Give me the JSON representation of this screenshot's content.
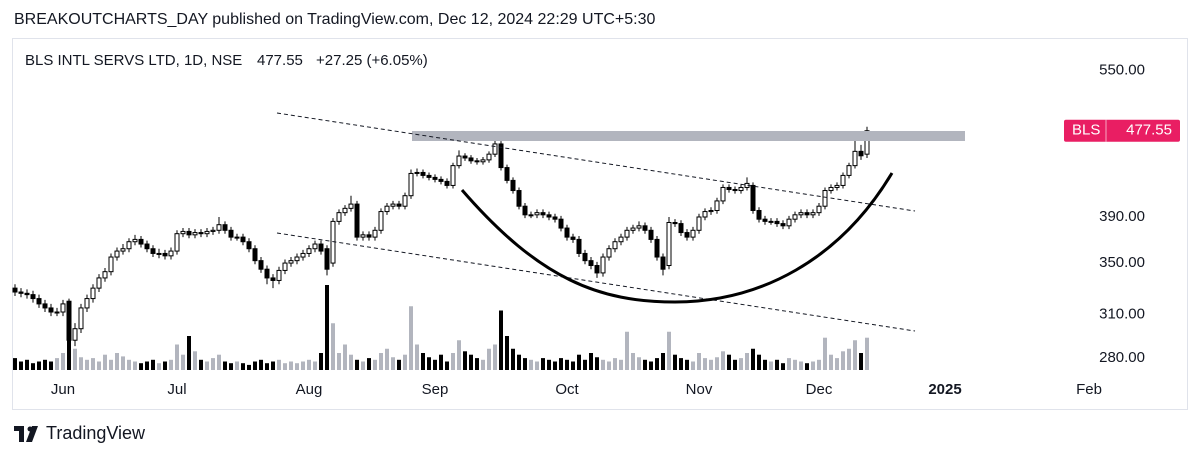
{
  "header": {
    "publisher_line": "BREAKOUTCHARTS_DAY published on TradingView.com, Dec 12, 2024 22:29 UTC+5:30"
  },
  "chart_data": {
    "type": "candlestick",
    "symbol": "BLS INTL SERVS LTD, 1D, NSE",
    "change": "+27.25 (+6.05%)",
    "badge": "BLS",
    "open": [
      330,
      327,
      326,
      325,
      322,
      318,
      315,
      312,
      312,
      320,
      292,
      300,
      315,
      322,
      330,
      338,
      343,
      355,
      360,
      362,
      368,
      370,
      366,
      362,
      358,
      358,
      356,
      360,
      375,
      377,
      374,
      376,
      375,
      377,
      378,
      383,
      378,
      372,
      372,
      368,
      362,
      352,
      345,
      338,
      336,
      344,
      350,
      352,
      355,
      358,
      362,
      366,
      362,
      350,
      386,
      394,
      398,
      402,
      372,
      374,
      372,
      378,
      395,
      400,
      402,
      400,
      410,
      432,
      433,
      430,
      428,
      426,
      424,
      420,
      440,
      450,
      448,
      445,
      444,
      446,
      452,
      463,
      438,
      425,
      415,
      400,
      392,
      392,
      394,
      392,
      390,
      388,
      380,
      372,
      370,
      358,
      352,
      348,
      342,
      355,
      362,
      368,
      372,
      378,
      380,
      382,
      378,
      370,
      355,
      348,
      385,
      384,
      376,
      372,
      378,
      390,
      395,
      396,
      405,
      418,
      416,
      415,
      418,
      420,
      396,
      388,
      386,
      386,
      384,
      382,
      388,
      392,
      394,
      392,
      394,
      400,
      415,
      418,
      420,
      430,
      440,
      455,
      452
    ],
    "high": [
      333,
      330,
      329,
      328,
      325,
      321,
      318,
      315,
      321,
      322,
      304,
      318,
      325,
      333,
      341,
      346,
      358,
      363,
      366,
      371,
      374,
      373,
      369,
      365,
      362,
      361,
      363,
      378,
      380,
      380,
      379,
      379,
      380,
      381,
      390,
      386,
      381,
      375,
      375,
      371,
      365,
      355,
      348,
      341,
      347,
      353,
      355,
      358,
      361,
      365,
      369,
      369,
      365,
      389,
      397,
      401,
      410,
      405,
      377,
      377,
      381,
      398,
      403,
      405,
      405,
      413,
      436,
      437,
      436,
      433,
      431,
      429,
      427,
      443,
      456,
      453,
      451,
      448,
      449,
      455,
      472,
      466,
      441,
      428,
      418,
      403,
      395,
      397,
      397,
      395,
      393,
      391,
      383,
      375,
      373,
      361,
      355,
      351,
      358,
      365,
      371,
      375,
      381,
      383,
      386,
      385,
      381,
      373,
      358,
      390,
      388,
      387,
      379,
      381,
      393,
      398,
      399,
      408,
      421,
      421,
      419,
      421,
      428,
      423,
      399,
      391,
      389,
      389,
      387,
      391,
      395,
      397,
      397,
      397,
      403,
      418,
      421,
      423,
      433,
      443,
      470,
      462,
      482
    ],
    "low": [
      324,
      323,
      322,
      319,
      315,
      312,
      309,
      309,
      309,
      284,
      288,
      297,
      312,
      319,
      327,
      335,
      340,
      352,
      357,
      359,
      365,
      363,
      359,
      355,
      354,
      353,
      353,
      357,
      372,
      371,
      371,
      372,
      372,
      374,
      375,
      375,
      369,
      369,
      365,
      359,
      349,
      342,
      333,
      330,
      333,
      341,
      347,
      349,
      352,
      355,
      359,
      357,
      340,
      347,
      383,
      391,
      395,
      369,
      369,
      369,
      369,
      375,
      392,
      397,
      397,
      397,
      407,
      429,
      427,
      425,
      423,
      421,
      417,
      417,
      437,
      445,
      442,
      441,
      441,
      443,
      449,
      435,
      422,
      412,
      397,
      389,
      389,
      389,
      389,
      387,
      385,
      377,
      369,
      367,
      355,
      349,
      345,
      338,
      339,
      352,
      359,
      365,
      369,
      375,
      377,
      375,
      367,
      352,
      340,
      345,
      381,
      373,
      369,
      369,
      375,
      387,
      392,
      393,
      402,
      413,
      412,
      412,
      415,
      393,
      385,
      383,
      383,
      381,
      379,
      379,
      385,
      389,
      389,
      389,
      391,
      397,
      412,
      415,
      417,
      427,
      437,
      446,
      448
    ],
    "close": [
      327,
      326,
      325,
      322,
      318,
      315,
      312,
      312,
      318,
      292,
      300,
      315,
      322,
      330,
      338,
      343,
      355,
      360,
      362,
      368,
      370,
      366,
      362,
      358,
      358,
      356,
      360,
      375,
      377,
      374,
      376,
      375,
      377,
      378,
      383,
      378,
      372,
      372,
      368,
      362,
      352,
      345,
      338,
      336,
      344,
      350,
      352,
      355,
      358,
      362,
      366,
      360,
      345,
      386,
      394,
      398,
      402,
      372,
      374,
      372,
      378,
      395,
      400,
      402,
      400,
      410,
      432,
      433,
      430,
      428,
      426,
      424,
      420,
      440,
      450,
      448,
      445,
      444,
      446,
      452,
      463,
      438,
      425,
      415,
      400,
      392,
      392,
      394,
      392,
      390,
      388,
      380,
      372,
      370,
      358,
      352,
      348,
      342,
      355,
      362,
      368,
      372,
      378,
      380,
      382,
      378,
      370,
      355,
      345,
      385,
      384,
      376,
      372,
      378,
      390,
      395,
      396,
      405,
      418,
      416,
      415,
      418,
      422,
      396,
      388,
      386,
      386,
      384,
      382,
      388,
      392,
      394,
      392,
      394,
      400,
      415,
      418,
      420,
      430,
      440,
      455,
      450.3,
      477.55
    ],
    "volume": [
      14,
      10,
      12,
      8,
      10,
      12,
      10,
      14,
      20,
      60,
      25,
      15,
      12,
      14,
      10,
      18,
      12,
      20,
      16,
      12,
      10,
      8,
      10,
      12,
      8,
      10,
      12,
      30,
      18,
      40,
      22,
      12,
      10,
      14,
      18,
      10,
      8,
      10,
      8,
      6,
      10,
      12,
      8,
      10,
      12,
      8,
      10,
      8,
      10,
      12,
      10,
      20,
      100,
      55,
      20,
      30,
      18,
      12,
      10,
      14,
      12,
      20,
      25,
      15,
      12,
      18,
      75,
      30,
      20,
      15,
      12,
      18,
      10,
      20,
      35,
      22,
      18,
      14,
      12,
      25,
      30,
      70,
      40,
      25,
      18,
      14,
      12,
      10,
      14,
      12,
      10,
      14,
      12,
      10,
      18,
      12,
      20,
      15,
      12,
      10,
      14,
      12,
      45,
      20,
      15,
      12,
      10,
      14,
      20,
      45,
      18,
      14,
      12,
      10,
      20,
      14,
      12,
      15,
      22,
      18,
      12,
      14,
      20,
      25,
      18,
      12,
      10,
      12,
      8,
      14,
      12,
      10,
      8,
      10,
      12,
      38,
      18,
      14,
      22,
      25,
      35,
      20,
      38
    ],
    "up_color": "#ffffff",
    "down_color": "#000000",
    "wick_color": "#000000",
    "volume_up_color": "#b2b5be",
    "volume_down_color": "#000000",
    "badge_color": "#e91e63",
    "log_scale": true,
    "ylim": [
      271,
      591
    ],
    "yticks": [
      {
        "value": 280,
        "label": "280.00"
      },
      {
        "value": 310,
        "label": "310.00"
      },
      {
        "value": 350,
        "label": "350.00"
      },
      {
        "value": 390,
        "label": "390.00"
      },
      {
        "value": 550,
        "label": "550.00"
      }
    ],
    "xlim": [
      -0.5,
      195.5
    ],
    "xticks": [
      {
        "value": 8,
        "label": "Jun"
      },
      {
        "value": 27,
        "label": "Jul"
      },
      {
        "value": 49,
        "label": "Aug"
      },
      {
        "value": 70,
        "label": "Sep"
      },
      {
        "value": 92,
        "label": "Oct"
      },
      {
        "value": 114,
        "label": "Nov"
      },
      {
        "value": 134,
        "label": "Dec"
      },
      {
        "value": 155,
        "label": "2025"
      },
      {
        "value": 179,
        "label": "Feb"
      }
    ]
  },
  "footer": {
    "brand": "TradingView"
  }
}
